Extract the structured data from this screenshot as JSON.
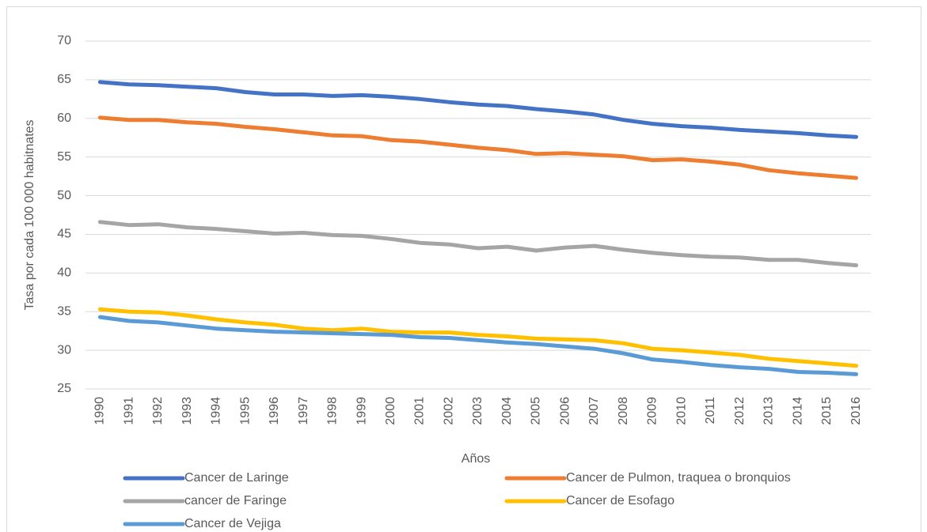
{
  "chart_data": {
    "type": "line",
    "x_label": "Años",
    "y_label": "Tasa por cada 100 000 habitnates",
    "categories": [
      "1990",
      "1991",
      "1992",
      "1993",
      "1994",
      "1995",
      "1996",
      "1997",
      "1998",
      "1999",
      "2000",
      "2001",
      "2002",
      "2003",
      "2004",
      "2005",
      "2006",
      "2007",
      "2008",
      "2009",
      "2010",
      "2011",
      "2012",
      "2013",
      "2014",
      "2015",
      "2016"
    ],
    "series": [
      {
        "name": "Cancer de Laringe",
        "color": "#4472c4",
        "values": [
          64.7,
          64.4,
          64.3,
          64.1,
          63.9,
          63.4,
          63.1,
          63.1,
          62.9,
          63.0,
          62.8,
          62.5,
          62.1,
          61.8,
          61.6,
          61.2,
          60.9,
          60.5,
          59.8,
          59.3,
          59.0,
          58.8,
          58.5,
          58.3,
          58.1,
          57.8,
          57.6
        ]
      },
      {
        "name": "Cancer de Pulmon, traquea o bronquios",
        "color": "#ed7d31",
        "values": [
          60.1,
          59.8,
          59.8,
          59.5,
          59.3,
          58.9,
          58.6,
          58.2,
          57.8,
          57.7,
          57.2,
          57.0,
          56.6,
          56.2,
          55.9,
          55.4,
          55.5,
          55.3,
          55.1,
          54.6,
          54.7,
          54.4,
          54.0,
          53.3,
          52.9,
          52.6,
          52.3
        ]
      },
      {
        "name": "cancer de Faringe",
        "color": "#a5a5a5",
        "values": [
          46.6,
          46.2,
          46.3,
          45.9,
          45.7,
          45.4,
          45.1,
          45.2,
          44.9,
          44.8,
          44.4,
          43.9,
          43.7,
          43.2,
          43.4,
          42.9,
          43.3,
          43.5,
          43.0,
          42.6,
          42.3,
          42.1,
          42.0,
          41.7,
          41.7,
          41.3,
          41.0
        ]
      },
      {
        "name": "Cancer de Esofago",
        "color": "#ffc000",
        "values": [
          35.3,
          35.0,
          34.9,
          34.5,
          34.0,
          33.6,
          33.3,
          32.8,
          32.6,
          32.8,
          32.4,
          32.3,
          32.3,
          32.0,
          31.8,
          31.5,
          31.4,
          31.3,
          30.9,
          30.2,
          30.0,
          29.7,
          29.4,
          28.9,
          28.6,
          28.3,
          28.0
        ]
      },
      {
        "name": "Cancer de Vejiga",
        "color": "#5b9bd5",
        "values": [
          34.3,
          33.8,
          33.6,
          33.2,
          32.8,
          32.6,
          32.4,
          32.3,
          32.2,
          32.1,
          32.0,
          31.7,
          31.6,
          31.3,
          31.0,
          30.8,
          30.5,
          30.2,
          29.6,
          28.8,
          28.5,
          28.1,
          27.8,
          27.6,
          27.2,
          27.1,
          26.9
        ]
      }
    ],
    "ylim": [
      25,
      70
    ],
    "yticks": [
      25,
      30,
      35,
      40,
      45,
      50,
      55,
      60,
      65,
      70
    ],
    "grid": true,
    "legend": "bottom"
  }
}
